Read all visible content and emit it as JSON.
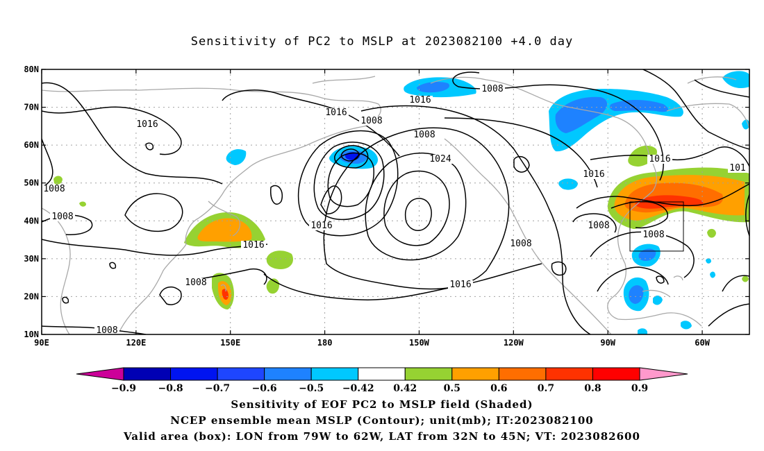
{
  "title": "Sensitivity of PC2 to MSLP at 2023082100 +4.0 day",
  "map": {
    "lon_labels": [
      "90E",
      "120E",
      "150E",
      "180",
      "150W",
      "120W",
      "90W",
      "60W"
    ],
    "lat_labels": [
      "80N",
      "70N",
      "60N",
      "50N",
      "40N",
      "30N",
      "20N",
      "10N"
    ],
    "valid_box": {
      "lon_from": "79W",
      "lon_to": "62W",
      "lat_from": "32N",
      "lat_to": "45N"
    },
    "contour_labels": [
      "1016",
      "1008",
      "1008",
      "1008",
      "1016",
      "1016",
      "1008",
      "1016",
      "1024",
      "1008",
      "1016",
      "1008",
      "1008",
      "1016",
      "1008",
      "1016",
      "1016",
      "101",
      "1008",
      "1008"
    ]
  },
  "colorbar": {
    "labels": [
      "-0.9",
      "-0.8",
      "-0.7",
      "-0.6",
      "-0.5",
      "-0.42",
      "0.42",
      "0.5",
      "0.6",
      "0.7",
      "0.8",
      "0.9"
    ],
    "colors": [
      "#cc0099",
      "#0000b4",
      "#0014f0",
      "#1e46ff",
      "#1e82ff",
      "#00c8ff",
      "#ffffff",
      "#96d232",
      "#ffa000",
      "#ff6e00",
      "#ff3200",
      "#ff0000",
      "#ff99cc"
    ]
  },
  "captions": {
    "line1": "Sensitivity of EOF PC2 to MSLP field (Shaded)",
    "line2": "NCEP ensemble mean MSLP (Contour); unit(mb); IT:2023082100",
    "line3": "Valid area (box): LON from 79W to 62W, LAT from 32N to 45N; VT: 2023082600"
  }
}
